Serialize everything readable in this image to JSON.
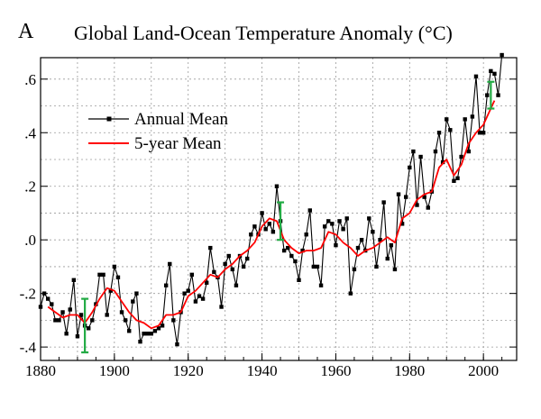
{
  "panel_label": "A",
  "chart_data": {
    "type": "line",
    "title": "Global Land-Ocean Temperature Anomaly (°C)",
    "xlabel": "",
    "ylabel": "",
    "xlim": [
      1880,
      2009
    ],
    "ylim": [
      -0.45,
      0.68
    ],
    "x_ticks": [
      1880,
      1900,
      1920,
      1940,
      1960,
      1980,
      2000
    ],
    "x_tick_labels": [
      "1880",
      "1900",
      "1920",
      "1940",
      "1960",
      "1980",
      "2000"
    ],
    "y_ticks": [
      -0.4,
      -0.2,
      0.0,
      0.2,
      0.4,
      0.6
    ],
    "y_tick_labels": [
      "-.4",
      "-.2",
      ".0",
      ".2",
      ".4",
      ".6"
    ],
    "grid": true,
    "legend_position": "top-left",
    "series": [
      {
        "name": "Annual Mean",
        "color": "#000000",
        "marker": "square",
        "x": [
          1880,
          1881,
          1882,
          1883,
          1884,
          1885,
          1886,
          1887,
          1888,
          1889,
          1890,
          1891,
          1892,
          1893,
          1894,
          1895,
          1896,
          1897,
          1898,
          1899,
          1900,
          1901,
          1902,
          1903,
          1904,
          1905,
          1906,
          1907,
          1908,
          1909,
          1910,
          1911,
          1912,
          1913,
          1914,
          1915,
          1916,
          1917,
          1918,
          1919,
          1920,
          1921,
          1922,
          1923,
          1924,
          1925,
          1926,
          1927,
          1928,
          1929,
          1930,
          1931,
          1932,
          1933,
          1934,
          1935,
          1936,
          1937,
          1938,
          1939,
          1940,
          1941,
          1942,
          1943,
          1944,
          1945,
          1946,
          1947,
          1948,
          1949,
          1950,
          1951,
          1952,
          1953,
          1954,
          1955,
          1956,
          1957,
          1958,
          1959,
          1960,
          1961,
          1962,
          1963,
          1964,
          1965,
          1966,
          1967,
          1968,
          1969,
          1970,
          1971,
          1972,
          1973,
          1974,
          1975,
          1976,
          1977,
          1978,
          1979,
          1980,
          1981,
          1982,
          1983,
          1984,
          1985,
          1986,
          1987,
          1988,
          1989,
          1990,
          1991,
          1992,
          1993,
          1994,
          1995,
          1996,
          1997,
          1998,
          1999,
          2000,
          2001,
          2002,
          2003,
          2004,
          2005
        ],
        "y": [
          -0.25,
          -0.2,
          -0.22,
          -0.24,
          -0.3,
          -0.3,
          -0.27,
          -0.35,
          -0.26,
          -0.15,
          -0.36,
          -0.28,
          -0.32,
          -0.33,
          -0.3,
          -0.24,
          -0.13,
          -0.13,
          -0.28,
          -0.19,
          -0.1,
          -0.14,
          -0.27,
          -0.3,
          -0.34,
          -0.23,
          -0.2,
          -0.38,
          -0.35,
          -0.35,
          -0.35,
          -0.34,
          -0.33,
          -0.32,
          -0.17,
          -0.09,
          -0.3,
          -0.39,
          -0.27,
          -0.2,
          -0.19,
          -0.13,
          -0.23,
          -0.21,
          -0.22,
          -0.16,
          -0.03,
          -0.12,
          -0.14,
          -0.25,
          -0.09,
          -0.06,
          -0.11,
          -0.17,
          -0.06,
          -0.1,
          -0.07,
          0.02,
          0.05,
          0.02,
          0.1,
          0.04,
          0.06,
          0.03,
          0.2,
          0.07,
          -0.04,
          -0.03,
          -0.06,
          -0.08,
          -0.15,
          -0.04,
          0.02,
          0.11,
          -0.1,
          -0.1,
          -0.17,
          0.05,
          0.07,
          0.06,
          -0.02,
          0.07,
          0.04,
          0.08,
          -0.2,
          -0.11,
          -0.03,
          0.0,
          -0.04,
          0.08,
          0.03,
          -0.1,
          0.0,
          0.14,
          -0.07,
          -0.02,
          -0.11,
          0.17,
          0.06,
          0.16,
          0.27,
          0.33,
          0.13,
          0.31,
          0.16,
          0.12,
          0.18,
          0.33,
          0.4,
          0.29,
          0.45,
          0.41,
          0.22,
          0.23,
          0.31,
          0.45,
          0.33,
          0.46,
          0.61,
          0.4,
          0.4,
          0.54,
          0.63,
          0.62,
          0.54,
          0.69
        ]
      },
      {
        "name": "5-year Mean",
        "color": "#ff0000",
        "marker": "none",
        "x": [
          1882,
          1884,
          1886,
          1888,
          1890,
          1892,
          1894,
          1896,
          1898,
          1900,
          1902,
          1904,
          1906,
          1908,
          1910,
          1912,
          1914,
          1916,
          1918,
          1920,
          1922,
          1924,
          1926,
          1928,
          1930,
          1932,
          1934,
          1936,
          1938,
          1940,
          1942,
          1944,
          1946,
          1948,
          1950,
          1952,
          1954,
          1956,
          1958,
          1960,
          1962,
          1964,
          1966,
          1968,
          1970,
          1972,
          1974,
          1976,
          1978,
          1980,
          1982,
          1984,
          1986,
          1988,
          1990,
          1992,
          1994,
          1996,
          1998,
          2000,
          2002,
          2003
        ],
        "y": [
          -0.25,
          -0.27,
          -0.29,
          -0.28,
          -0.28,
          -0.31,
          -0.27,
          -0.22,
          -0.18,
          -0.19,
          -0.23,
          -0.27,
          -0.3,
          -0.31,
          -0.33,
          -0.32,
          -0.28,
          -0.28,
          -0.27,
          -0.21,
          -0.19,
          -0.16,
          -0.13,
          -0.14,
          -0.11,
          -0.09,
          -0.06,
          -0.04,
          -0.01,
          0.05,
          0.08,
          0.07,
          0.0,
          -0.03,
          -0.05,
          -0.04,
          -0.04,
          -0.03,
          0.03,
          0.02,
          -0.01,
          -0.03,
          -0.06,
          -0.04,
          -0.03,
          -0.01,
          0.01,
          -0.01,
          0.08,
          0.1,
          0.15,
          0.17,
          0.18,
          0.27,
          0.3,
          0.24,
          0.28,
          0.36,
          0.4,
          0.43,
          0.49,
          0.52
        ]
      }
    ],
    "error_bars": [
      {
        "x": 1892,
        "low": -0.42,
        "high": -0.22,
        "color": "#22aa44"
      },
      {
        "x": 1945,
        "low": -0.0,
        "high": 0.14,
        "color": "#22aa44"
      },
      {
        "x": 2002,
        "low": 0.49,
        "high": 0.59,
        "color": "#22aa44"
      }
    ]
  }
}
